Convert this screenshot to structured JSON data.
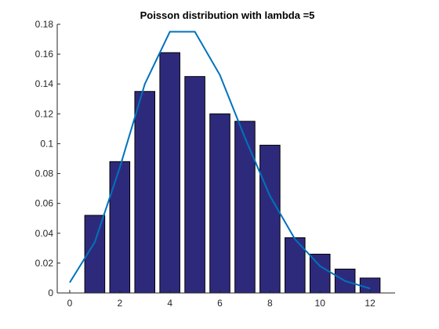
{
  "chart_data": {
    "type": "bar",
    "title": "Poisson distribution with lambda =5",
    "xlabel": "",
    "ylabel": "",
    "xlim": [
      -0.5,
      13
    ],
    "ylim": [
      0,
      0.18
    ],
    "xticks": [
      0,
      2,
      4,
      6,
      8,
      10,
      12
    ],
    "yticks": [
      0,
      0.02,
      0.04,
      0.06,
      0.08,
      0.1,
      0.12,
      0.14,
      0.16,
      0.18
    ],
    "grid": false,
    "legend": "none",
    "series": [
      {
        "kind": "bar",
        "x": [
          1,
          2,
          3,
          4,
          5,
          6,
          7,
          8,
          9,
          10,
          11,
          12
        ],
        "values": [
          0.052,
          0.088,
          0.135,
          0.161,
          0.145,
          0.12,
          0.115,
          0.099,
          0.037,
          0.026,
          0.016,
          0.01
        ],
        "color": "#2e2a7b"
      },
      {
        "kind": "line",
        "x": [
          0,
          1,
          2,
          3,
          4,
          5,
          6,
          7,
          8,
          9,
          10,
          11,
          12
        ],
        "values": [
          0.007,
          0.034,
          0.084,
          0.14,
          0.175,
          0.175,
          0.146,
          0.104,
          0.065,
          0.036,
          0.018,
          0.008,
          0.003
        ],
        "color": "#0072bd"
      }
    ]
  }
}
